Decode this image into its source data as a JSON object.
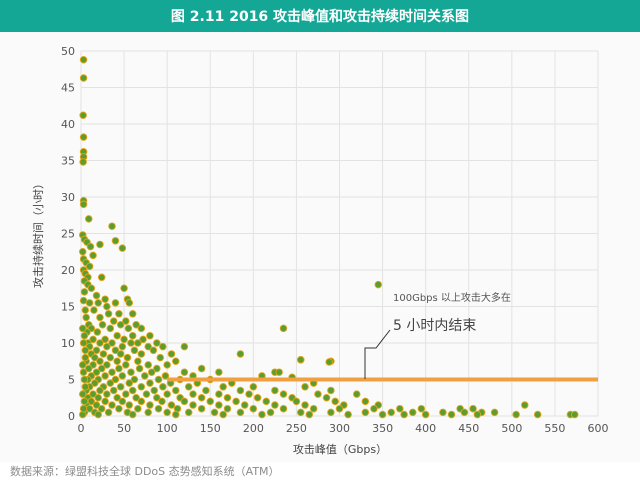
{
  "header": {
    "title": "图 2.11 2016 攻击峰值和攻击持续时间关系图"
  },
  "footer": {
    "source": "数据来源：绿盟科技全球 DDoS 态势感知系统（ATM）"
  },
  "chart_data": {
    "type": "scatter",
    "title": "图 2.11 2016 攻击峰值和攻击持续时间关系图",
    "xlabel": "攻击峰值（Gbps）",
    "ylabel": "攻击持续时间（小时）",
    "xlim": [
      0,
      600
    ],
    "ylim": [
      0,
      50
    ],
    "xticks": [
      0,
      50,
      100,
      150,
      200,
      250,
      300,
      350,
      400,
      450,
      500,
      550,
      600
    ],
    "yticks": [
      0,
      5,
      10,
      15,
      20,
      25,
      30,
      35,
      40,
      45,
      50
    ],
    "grid": true,
    "point_color": "#5a9e2f",
    "point_edge": "#e8a317",
    "reference_line": {
      "y": 5,
      "x_from": 100,
      "x_to": 600,
      "color": "#f0a040"
    },
    "annotation": {
      "line1": "100Gbps 以上攻击大多在",
      "line2": "5 小时内结束"
    },
    "points": [
      [
        3,
        48.8
      ],
      [
        3,
        46.3
      ],
      [
        2.5,
        41.2
      ],
      [
        3,
        38.2
      ],
      [
        3,
        36.2
      ],
      [
        3,
        35.5
      ],
      [
        2.5,
        34.8
      ],
      [
        3,
        29.5
      ],
      [
        3,
        29
      ],
      [
        9,
        27
      ],
      [
        2,
        24.8
      ],
      [
        4,
        24.2
      ],
      [
        7,
        23.8
      ],
      [
        11,
        23.2
      ],
      [
        2,
        22.5
      ],
      [
        14,
        22
      ],
      [
        36,
        26
      ],
      [
        40,
        24
      ],
      [
        48,
        23
      ],
      [
        22,
        23.5
      ],
      [
        3,
        21.5
      ],
      [
        6,
        21
      ],
      [
        10,
        20.5
      ],
      [
        3,
        20
      ],
      [
        5,
        19.5
      ],
      [
        8,
        19
      ],
      [
        24,
        19
      ],
      [
        4,
        18.5
      ],
      [
        8,
        18
      ],
      [
        12,
        17.5
      ],
      [
        4,
        17
      ],
      [
        18,
        16.5
      ],
      [
        28,
        16
      ],
      [
        50,
        17.5
      ],
      [
        54,
        16
      ],
      [
        3,
        15.8
      ],
      [
        10,
        15.5
      ],
      [
        20,
        15.5
      ],
      [
        40,
        15.5
      ],
      [
        56,
        15.5
      ],
      [
        30,
        15
      ],
      [
        5,
        14.5
      ],
      [
        15,
        14.5
      ],
      [
        32,
        14
      ],
      [
        44,
        14
      ],
      [
        60,
        14
      ],
      [
        6,
        13.5
      ],
      [
        22,
        13.5
      ],
      [
        38,
        13
      ],
      [
        52,
        13
      ],
      [
        9,
        12.5
      ],
      [
        25,
        12.5
      ],
      [
        46,
        12.5
      ],
      [
        64,
        12.5
      ],
      [
        12,
        12
      ],
      [
        34,
        12
      ],
      [
        55,
        12
      ],
      [
        70,
        12
      ],
      [
        7,
        11.5
      ],
      [
        19,
        11.5
      ],
      [
        42,
        11
      ],
      [
        60,
        11
      ],
      [
        80,
        11
      ],
      [
        14,
        10.5
      ],
      [
        28,
        10.5
      ],
      [
        50,
        10.5
      ],
      [
        72,
        10.5
      ],
      [
        8,
        10
      ],
      [
        22,
        10
      ],
      [
        36,
        10
      ],
      [
        58,
        10
      ],
      [
        66,
        10
      ],
      [
        88,
        10
      ],
      [
        120,
        9.5
      ],
      [
        10,
        9.5
      ],
      [
        30,
        9.5
      ],
      [
        48,
        9.5
      ],
      [
        78,
        9.5
      ],
      [
        95,
        9.5
      ],
      [
        5,
        9
      ],
      [
        18,
        9
      ],
      [
        40,
        9
      ],
      [
        62,
        9
      ],
      [
        84,
        9
      ],
      [
        12,
        8.5
      ],
      [
        26,
        8.5
      ],
      [
        46,
        8.5
      ],
      [
        70,
        8.5
      ],
      [
        105,
        8.5
      ],
      [
        185,
        8.5
      ],
      [
        16,
        8
      ],
      [
        34,
        8
      ],
      [
        54,
        8
      ],
      [
        92,
        8
      ],
      [
        6,
        7.5
      ],
      [
        22,
        7.5
      ],
      [
        42,
        7.5
      ],
      [
        66,
        7.5
      ],
      [
        110,
        7.5
      ],
      [
        14,
        7
      ],
      [
        30,
        7
      ],
      [
        52,
        7
      ],
      [
        78,
        7
      ],
      [
        100,
        7
      ],
      [
        290,
        7.5
      ],
      [
        255,
        7.7
      ],
      [
        9,
        6.5
      ],
      [
        24,
        6.5
      ],
      [
        44,
        6.5
      ],
      [
        68,
        6.5
      ],
      [
        88,
        6.5
      ],
      [
        140,
        6.5
      ],
      [
        18,
        6
      ],
      [
        36,
        6
      ],
      [
        58,
        6
      ],
      [
        82,
        6
      ],
      [
        120,
        6
      ],
      [
        160,
        6
      ],
      [
        225,
        6
      ],
      [
        230,
        6
      ],
      [
        12,
        5.5
      ],
      [
        28,
        5.5
      ],
      [
        48,
        5.5
      ],
      [
        74,
        5.5
      ],
      [
        98,
        5.5
      ],
      [
        130,
        5.5
      ],
      [
        210,
        5.5
      ],
      [
        8,
        5
      ],
      [
        20,
        5
      ],
      [
        40,
        5
      ],
      [
        62,
        5
      ],
      [
        90,
        5
      ],
      [
        115,
        5
      ],
      [
        150,
        5
      ],
      [
        245,
        5.3
      ],
      [
        16,
        4.5
      ],
      [
        34,
        4.5
      ],
      [
        56,
        4.5
      ],
      [
        80,
        4.5
      ],
      [
        104,
        4.5
      ],
      [
        135,
        4.5
      ],
      [
        175,
        4.5
      ],
      [
        270,
        4.5
      ],
      [
        10,
        4
      ],
      [
        26,
        4
      ],
      [
        46,
        4
      ],
      [
        70,
        4
      ],
      [
        95,
        4
      ],
      [
        125,
        4
      ],
      [
        165,
        4
      ],
      [
        200,
        4
      ],
      [
        260,
        4
      ],
      [
        6,
        3.5
      ],
      [
        22,
        3.5
      ],
      [
        38,
        3.5
      ],
      [
        60,
        3.5
      ],
      [
        85,
        3.5
      ],
      [
        110,
        3.5
      ],
      [
        145,
        3.5
      ],
      [
        185,
        3.5
      ],
      [
        225,
        3.5
      ],
      [
        290,
        3.5
      ],
      [
        14,
        3
      ],
      [
        30,
        3
      ],
      [
        52,
        3
      ],
      [
        76,
        3
      ],
      [
        100,
        3
      ],
      [
        130,
        3
      ],
      [
        160,
        3
      ],
      [
        195,
        3
      ],
      [
        235,
        3
      ],
      [
        275,
        3
      ],
      [
        320,
        3
      ],
      [
        8,
        2.5
      ],
      [
        20,
        2.5
      ],
      [
        42,
        2.5
      ],
      [
        64,
        2.5
      ],
      [
        88,
        2.5
      ],
      [
        115,
        2.5
      ],
      [
        140,
        2.5
      ],
      [
        170,
        2.5
      ],
      [
        205,
        2.5
      ],
      [
        245,
        2.5
      ],
      [
        285,
        2.5
      ],
      [
        12,
        2
      ],
      [
        28,
        2
      ],
      [
        48,
        2
      ],
      [
        70,
        2
      ],
      [
        94,
        2
      ],
      [
        120,
        2
      ],
      [
        150,
        2
      ],
      [
        180,
        2
      ],
      [
        215,
        2
      ],
      [
        250,
        2
      ],
      [
        295,
        2
      ],
      [
        330,
        2
      ],
      [
        6,
        1.5
      ],
      [
        18,
        1.5
      ],
      [
        36,
        1.5
      ],
      [
        56,
        1.5
      ],
      [
        80,
        1.5
      ],
      [
        105,
        1.5
      ],
      [
        130,
        1.5
      ],
      [
        160,
        1.5
      ],
      [
        190,
        1.5
      ],
      [
        225,
        1.5
      ],
      [
        260,
        1.5
      ],
      [
        305,
        1.5
      ],
      [
        345,
        1.5
      ],
      [
        10,
        1
      ],
      [
        24,
        1
      ],
      [
        44,
        1
      ],
      [
        66,
        1
      ],
      [
        90,
        1
      ],
      [
        112,
        1
      ],
      [
        140,
        1
      ],
      [
        170,
        1
      ],
      [
        200,
        1
      ],
      [
        235,
        1
      ],
      [
        270,
        1
      ],
      [
        300,
        1
      ],
      [
        340,
        1
      ],
      [
        370,
        1
      ],
      [
        395,
        1
      ],
      [
        440,
        1
      ],
      [
        455,
        1
      ],
      [
        4,
        0.5
      ],
      [
        16,
        0.5
      ],
      [
        32,
        0.5
      ],
      [
        54,
        0.5
      ],
      [
        78,
        0.5
      ],
      [
        100,
        0.5
      ],
      [
        125,
        0.5
      ],
      [
        155,
        0.5
      ],
      [
        185,
        0.5
      ],
      [
        220,
        0.5
      ],
      [
        255,
        0.5
      ],
      [
        290,
        0.5
      ],
      [
        330,
        0.5
      ],
      [
        360,
        0.5
      ],
      [
        385,
        0.5
      ],
      [
        420,
        0.5
      ],
      [
        445,
        0.5
      ],
      [
        465,
        0.5
      ],
      [
        480,
        0.5
      ],
      [
        2,
        0.2
      ],
      [
        20,
        0.2
      ],
      [
        60,
        0.2
      ],
      [
        110,
        0.2
      ],
      [
        165,
        0.2
      ],
      [
        210,
        0.2
      ],
      [
        265,
        0.2
      ],
      [
        310,
        0.2
      ],
      [
        350,
        0.2
      ],
      [
        375,
        0.2
      ],
      [
        400,
        0.2
      ],
      [
        430,
        0.2
      ],
      [
        460,
        0.2
      ],
      [
        505,
        0.2
      ],
      [
        530,
        0.2
      ],
      [
        568,
        0.2
      ],
      [
        573,
        0.2
      ],
      [
        515,
        1.5
      ],
      [
        235,
        12
      ],
      [
        255,
        7.7
      ],
      [
        345,
        18
      ],
      [
        288,
        7.4
      ],
      [
        2,
        12
      ],
      [
        4,
        11
      ],
      [
        3,
        10
      ],
      [
        5,
        8
      ],
      [
        2,
        7
      ],
      [
        3,
        6
      ],
      [
        4,
        5
      ],
      [
        5,
        4
      ],
      [
        2,
        3
      ],
      [
        4,
        2
      ],
      [
        3,
        1
      ]
    ]
  }
}
